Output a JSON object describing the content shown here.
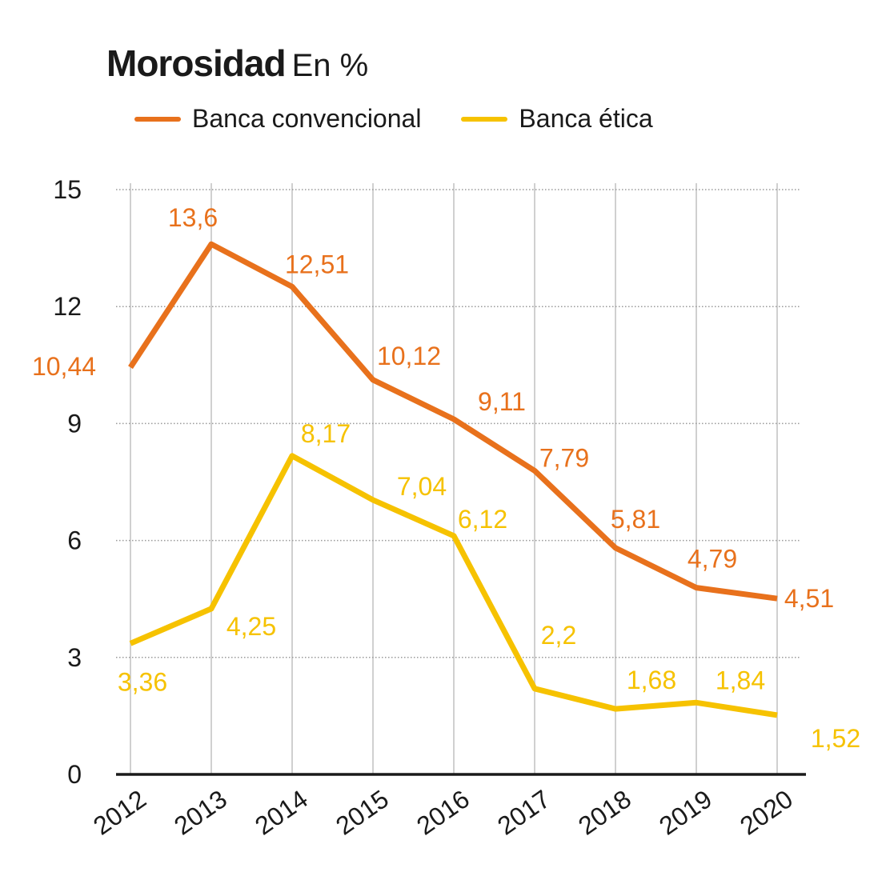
{
  "title": "Morosidad",
  "subtitle": "En %",
  "colors": {
    "conventional": "#E8711C",
    "ethical": "#F6C200",
    "grid": "#9a9a9a",
    "gridVertical": "#d0d0d0",
    "axis": "#1a1a1a"
  },
  "chart_data": {
    "type": "line",
    "title": "Morosidad",
    "subtitle": "En %",
    "x": [
      "2012",
      "2013",
      "2014",
      "2015",
      "2016",
      "2017",
      "2018",
      "2019",
      "2020"
    ],
    "ylim": [
      0,
      15
    ],
    "yticks": [
      "0",
      "3",
      "6",
      "9",
      "12",
      "15"
    ],
    "grid": "horizontal dotted, vertical solid light",
    "legend": "top",
    "series": [
      {
        "name": "Banca convencional",
        "color": "#E8711C",
        "values": [
          10.44,
          13.6,
          12.51,
          10.12,
          9.11,
          7.79,
          5.81,
          4.79,
          4.51
        ],
        "labels": [
          "10,44",
          "13,6",
          "12,51",
          "10,12",
          "9,11",
          "7,79",
          "5,81",
          "4,79",
          "4,51"
        ]
      },
      {
        "name": "Banca ética",
        "color": "#F6C200",
        "values": [
          3.36,
          4.25,
          8.17,
          7.04,
          6.12,
          2.2,
          1.68,
          1.84,
          1.52
        ],
        "labels": [
          "3,36",
          "4,25",
          "8,17",
          "7,04",
          "6,12",
          "2,2",
          "1,68",
          "1,84",
          "1,52"
        ]
      }
    ]
  }
}
